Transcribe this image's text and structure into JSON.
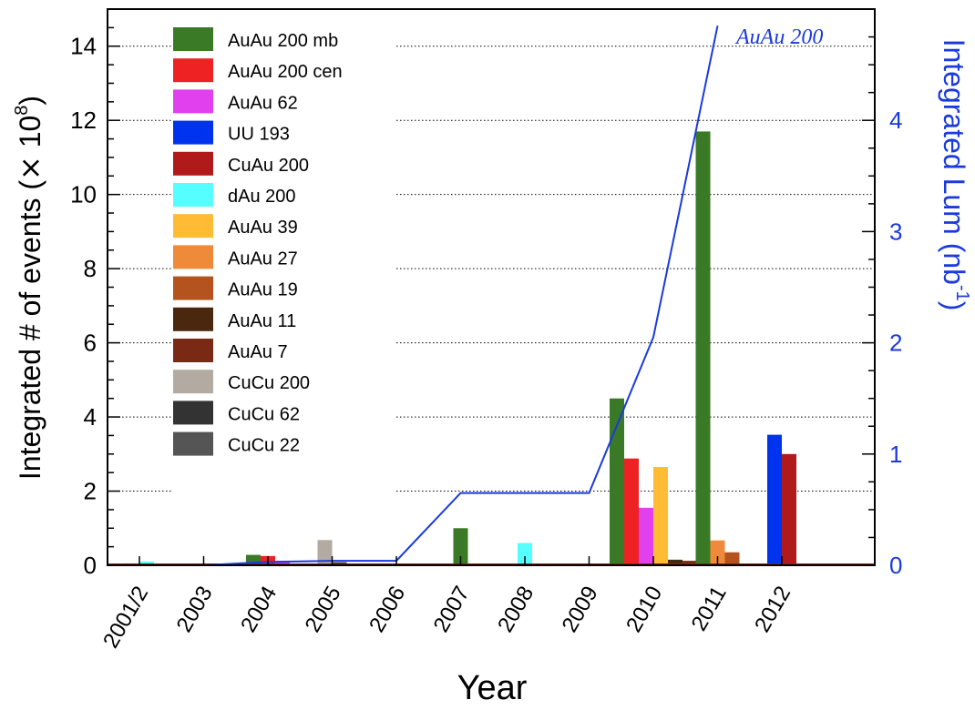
{
  "chart_data": {
    "type": "bar",
    "xlabel": "Year",
    "ylabel_left": "Integrated # of events (× 10^8)",
    "ylabel_left_parts": [
      "Integrated # of events (",
      "×",
      " 10",
      "8",
      ")"
    ],
    "ylabel_right_parts": [
      "Integrated Lum (nb",
      "-1",
      ")"
    ],
    "ylim_left": [
      0,
      15
    ],
    "ylim_right": [
      0,
      5
    ],
    "left_ticks": [
      0,
      2,
      4,
      6,
      8,
      10,
      12,
      14
    ],
    "right_ticks": [
      0,
      1,
      2,
      3,
      4
    ],
    "categories": [
      "2001/2",
      "2003",
      "2004",
      "2005",
      "2006",
      "2007",
      "2008",
      "2009",
      "2010",
      "2011",
      "2012"
    ],
    "grid": "dotted horizontal",
    "legend_placement": "top-left",
    "series": [
      {
        "name": "AuAu 200 mb",
        "color": "#3a7a27",
        "values": [
          0.05,
          0,
          0.28,
          0.05,
          0,
          1.0,
          0,
          0,
          4.5,
          11.7,
          0
        ]
      },
      {
        "name": "AuAu 200 cen",
        "color": "#ee2222",
        "values": [
          0,
          0,
          0.25,
          0,
          0,
          0,
          0,
          0,
          2.88,
          0,
          0
        ]
      },
      {
        "name": "AuAu 62",
        "color": "#e040ee",
        "values": [
          0,
          0,
          0.12,
          0,
          0,
          0,
          0,
          0,
          1.55,
          0,
          0
        ]
      },
      {
        "name": "UU 193",
        "color": "#0033ee",
        "values": [
          0,
          0,
          0,
          0,
          0,
          0,
          0,
          0,
          0,
          0,
          3.52
        ]
      },
      {
        "name": "CuAu 200",
        "color": "#b01a1a",
        "values": [
          0,
          0,
          0,
          0,
          0,
          0,
          0,
          0,
          0,
          0,
          3.0
        ]
      },
      {
        "name": "dAu 200",
        "color": "#55ffff",
        "values": [
          0.1,
          0,
          0,
          0,
          0,
          0,
          0.6,
          0,
          0,
          0,
          0
        ]
      },
      {
        "name": "AuAu 39",
        "color": "#ffbb33",
        "values": [
          0,
          0,
          0,
          0,
          0,
          0,
          0,
          0,
          2.65,
          0,
          0
        ]
      },
      {
        "name": "AuAu 27",
        "color": "#ef8a3a",
        "values": [
          0,
          0,
          0,
          0,
          0,
          0,
          0,
          0,
          0,
          0.67,
          0
        ]
      },
      {
        "name": "AuAu 19",
        "color": "#b5531f",
        "values": [
          0,
          0,
          0,
          0,
          0,
          0,
          0,
          0,
          0,
          0.35,
          0
        ]
      },
      {
        "name": "AuAu 11",
        "color": "#4a2810",
        "values": [
          0,
          0,
          0,
          0,
          0,
          0,
          0,
          0,
          0.15,
          0,
          0
        ]
      },
      {
        "name": "AuAu 7",
        "color": "#7a2a14",
        "values": [
          0,
          0,
          0,
          0,
          0,
          0,
          0,
          0,
          0.12,
          0,
          0
        ]
      },
      {
        "name": "CuCu 200",
        "color": "#b3aba1",
        "values": [
          0,
          0,
          0,
          0.68,
          0,
          0,
          0,
          0,
          0,
          0,
          0
        ]
      },
      {
        "name": "CuCu 62",
        "color": "#333333",
        "values": [
          0,
          0,
          0,
          0.08,
          0,
          0,
          0,
          0,
          0,
          0,
          0
        ]
      },
      {
        "name": "CuCu 22",
        "color": "#555555",
        "values": [
          0,
          0,
          0,
          0.04,
          0,
          0,
          0,
          0,
          0,
          0,
          0
        ]
      }
    ],
    "luminosity_line": {
      "name": "AuAu 200",
      "color": "#1a3adc",
      "axis": "right",
      "points": [
        {
          "x": "2001/2",
          "y": 0.0
        },
        {
          "x": "2003",
          "y": 0.0
        },
        {
          "x": "2004",
          "y": 0.03
        },
        {
          "x": "2005",
          "y": 0.04
        },
        {
          "x": "2006",
          "y": 0.04
        },
        {
          "x": "2007",
          "y": 0.65
        },
        {
          "x": "2008",
          "y": 0.65
        },
        {
          "x": "2009",
          "y": 0.65
        },
        {
          "x": "2010",
          "y": 2.05
        },
        {
          "x": "2011",
          "y": 4.85
        }
      ]
    }
  }
}
